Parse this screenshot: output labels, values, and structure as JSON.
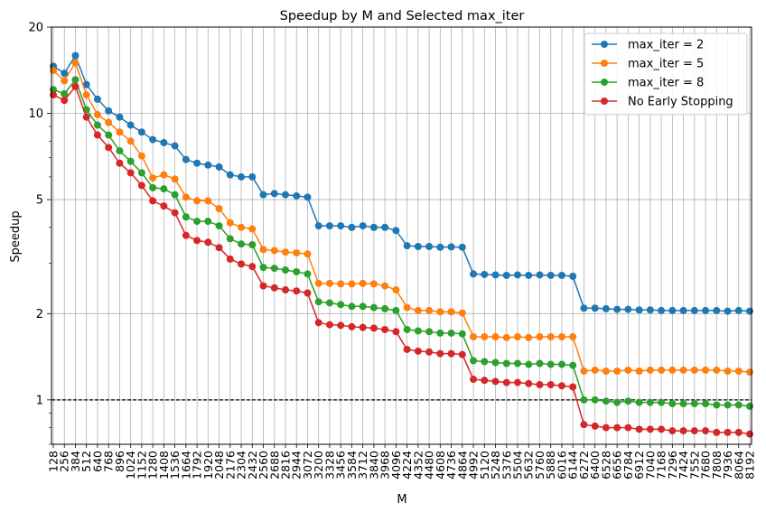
{
  "chart_data": {
    "type": "line",
    "title": "Speedup by M and Selected max_iter",
    "xlabel": "M",
    "ylabel": "Speedup",
    "yscale": "log",
    "ylim": [
      0.7,
      20
    ],
    "yticks": [
      1,
      2,
      5,
      10,
      20
    ],
    "yticklabels": [
      "1",
      "2",
      "5",
      "10",
      "20"
    ],
    "grid": true,
    "legend_position": "top-right",
    "reference_line": {
      "y": 1,
      "style": "dashed",
      "color": "#000000"
    },
    "x": [
      128,
      256,
      384,
      512,
      640,
      768,
      896,
      1024,
      1152,
      1280,
      1408,
      1536,
      1664,
      1792,
      1920,
      2048,
      2176,
      2304,
      2432,
      2560,
      2688,
      2816,
      2944,
      3072,
      3200,
      3328,
      3456,
      3584,
      3712,
      3840,
      3968,
      4096,
      4224,
      4352,
      4480,
      4608,
      4736,
      4864,
      4992,
      5120,
      5248,
      5376,
      5504,
      5632,
      5760,
      5888,
      6016,
      6144,
      6272,
      6400,
      6528,
      6656,
      6784,
      6912,
      7040,
      7168,
      7296,
      7424,
      7552,
      7680,
      7808,
      7936,
      8064,
      8192
    ],
    "x_tick_labels": [
      "128",
      "256",
      "384",
      "512",
      "640",
      "768",
      "896",
      "1024",
      "1152",
      "1280",
      "1408",
      "1536",
      "1664",
      "1792",
      "1920",
      "2048",
      "2176",
      "2304",
      "2432",
      "2560",
      "2688",
      "2816",
      "2944",
      "3072",
      "3200",
      "3328",
      "3456",
      "3584",
      "3712",
      "3840",
      "3968",
      "4096",
      "4224",
      "4352",
      "4480",
      "4608",
      "4736",
      "4864",
      "4992",
      "5120",
      "5248",
      "5376",
      "5504",
      "5632",
      "5760",
      "5888",
      "6016",
      "6144",
      "6272",
      "6400",
      "6528",
      "6656",
      "6784",
      "6912",
      "7040",
      "7168",
      "7296",
      "7424",
      "7552",
      "7680",
      "7808",
      "7936",
      "8064",
      "8192"
    ],
    "series": [
      {
        "name": "max_iter = 2",
        "color": "#1f77b4",
        "values": [
          14.6,
          13.8,
          15.9,
          12.6,
          11.2,
          10.2,
          9.7,
          9.1,
          8.6,
          8.1,
          7.9,
          7.7,
          6.9,
          6.7,
          6.6,
          6.5,
          6.1,
          6.0,
          6.0,
          5.2,
          5.25,
          5.2,
          5.15,
          5.1,
          4.05,
          4.05,
          4.05,
          4.0,
          4.05,
          4.0,
          4.0,
          3.9,
          3.45,
          3.43,
          3.43,
          3.41,
          3.42,
          3.41,
          2.75,
          2.74,
          2.73,
          2.72,
          2.73,
          2.72,
          2.73,
          2.72,
          2.72,
          2.7,
          2.09,
          2.09,
          2.08,
          2.07,
          2.07,
          2.06,
          2.06,
          2.05,
          2.05,
          2.05,
          2.05,
          2.05,
          2.05,
          2.04,
          2.05,
          2.04
        ]
      },
      {
        "name": "max_iter = 5",
        "color": "#ff7f0e",
        "values": [
          14.1,
          13.0,
          15.0,
          11.6,
          9.9,
          9.3,
          8.6,
          8.0,
          7.1,
          5.95,
          6.1,
          5.9,
          5.1,
          4.95,
          4.95,
          4.65,
          4.15,
          4.0,
          3.95,
          3.35,
          3.32,
          3.28,
          3.26,
          3.23,
          2.55,
          2.55,
          2.54,
          2.54,
          2.55,
          2.54,
          2.5,
          2.42,
          2.1,
          2.05,
          2.05,
          2.03,
          2.03,
          2.01,
          1.66,
          1.66,
          1.66,
          1.65,
          1.66,
          1.65,
          1.66,
          1.66,
          1.66,
          1.66,
          1.26,
          1.27,
          1.26,
          1.26,
          1.27,
          1.26,
          1.27,
          1.27,
          1.27,
          1.27,
          1.27,
          1.27,
          1.27,
          1.26,
          1.26,
          1.25
        ]
      },
      {
        "name": "max_iter = 8",
        "color": "#2ca02c",
        "values": [
          12.1,
          11.7,
          13.1,
          10.3,
          9.1,
          8.4,
          7.4,
          6.8,
          6.2,
          5.5,
          5.45,
          5.2,
          4.35,
          4.2,
          4.2,
          4.05,
          3.65,
          3.5,
          3.48,
          2.9,
          2.88,
          2.84,
          2.8,
          2.75,
          2.2,
          2.18,
          2.15,
          2.12,
          2.12,
          2.1,
          2.08,
          2.05,
          1.76,
          1.74,
          1.73,
          1.71,
          1.71,
          1.7,
          1.37,
          1.36,
          1.35,
          1.34,
          1.34,
          1.33,
          1.34,
          1.33,
          1.33,
          1.32,
          1.0,
          1.0,
          0.99,
          0.98,
          0.99,
          0.98,
          0.98,
          0.98,
          0.97,
          0.97,
          0.97,
          0.97,
          0.96,
          0.96,
          0.96,
          0.95
        ]
      },
      {
        "name": "No Early Stopping",
        "color": "#d62728",
        "values": [
          11.6,
          11.1,
          12.4,
          9.7,
          8.4,
          7.6,
          6.7,
          6.2,
          5.6,
          4.95,
          4.75,
          4.5,
          3.75,
          3.6,
          3.55,
          3.4,
          3.1,
          2.98,
          2.92,
          2.5,
          2.46,
          2.42,
          2.4,
          2.36,
          1.86,
          1.83,
          1.82,
          1.8,
          1.79,
          1.78,
          1.76,
          1.73,
          1.5,
          1.48,
          1.47,
          1.45,
          1.45,
          1.44,
          1.18,
          1.17,
          1.16,
          1.15,
          1.15,
          1.14,
          1.13,
          1.13,
          1.12,
          1.11,
          0.82,
          0.81,
          0.8,
          0.8,
          0.8,
          0.79,
          0.79,
          0.79,
          0.78,
          0.78,
          0.78,
          0.78,
          0.77,
          0.77,
          0.77,
          0.76
        ]
      }
    ]
  }
}
